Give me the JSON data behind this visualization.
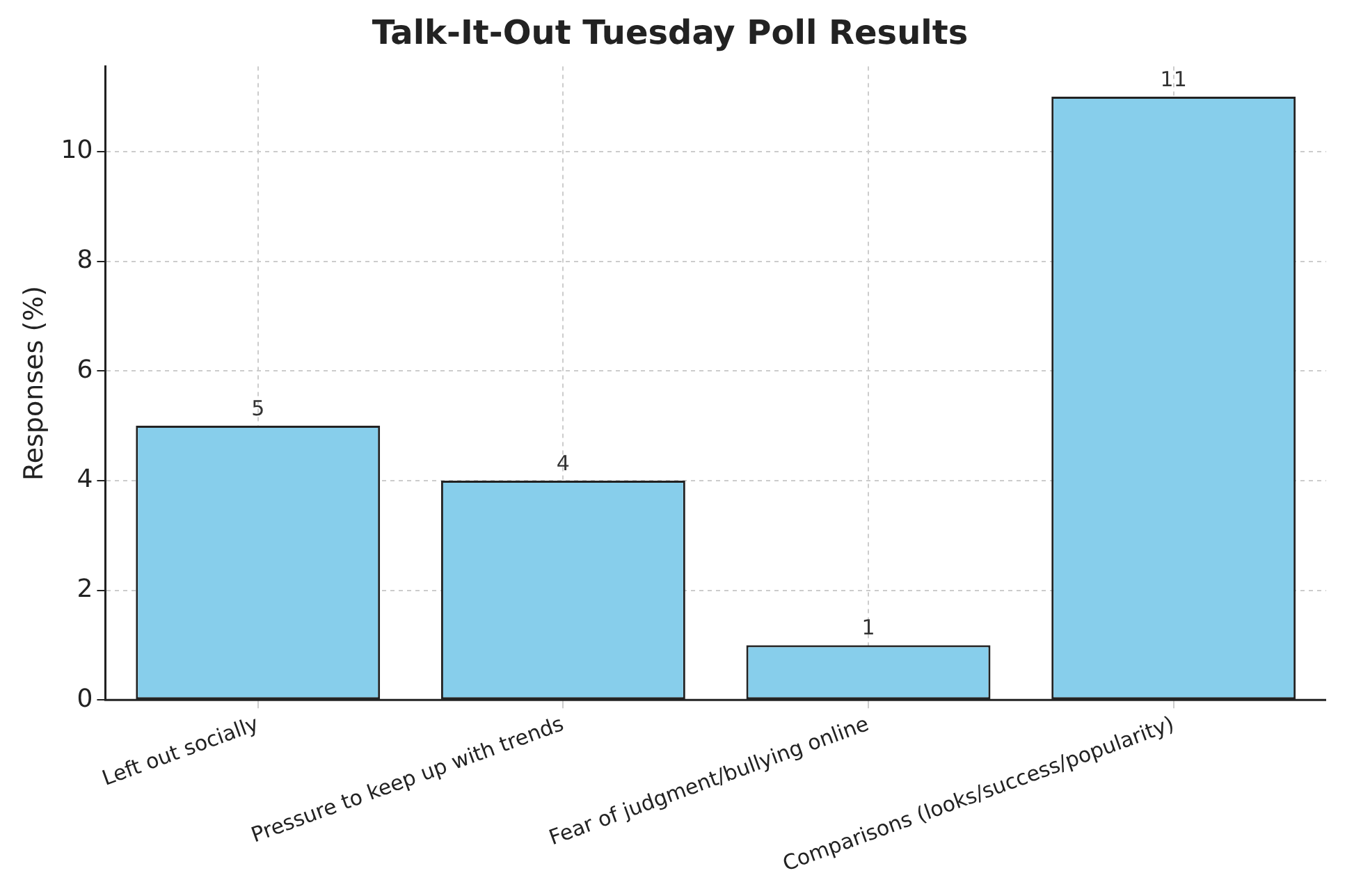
{
  "chart_data": {
    "type": "bar",
    "title": "Talk-It-Out Tuesday Poll Results",
    "ylabel": "Responses (%)",
    "categories": [
      "Left out socially",
      "Pressure to keep up with trends",
      "Fear of judgment/bullying online",
      "Comparisons (looks/success/popularity)"
    ],
    "values": [
      5,
      4,
      1,
      11
    ],
    "color": "#87ceeb",
    "ylim": [
      0,
      11.55
    ],
    "yticks": [
      0,
      2,
      4,
      6,
      8,
      10
    ],
    "grid": true,
    "data_labels": true,
    "legend": false
  }
}
